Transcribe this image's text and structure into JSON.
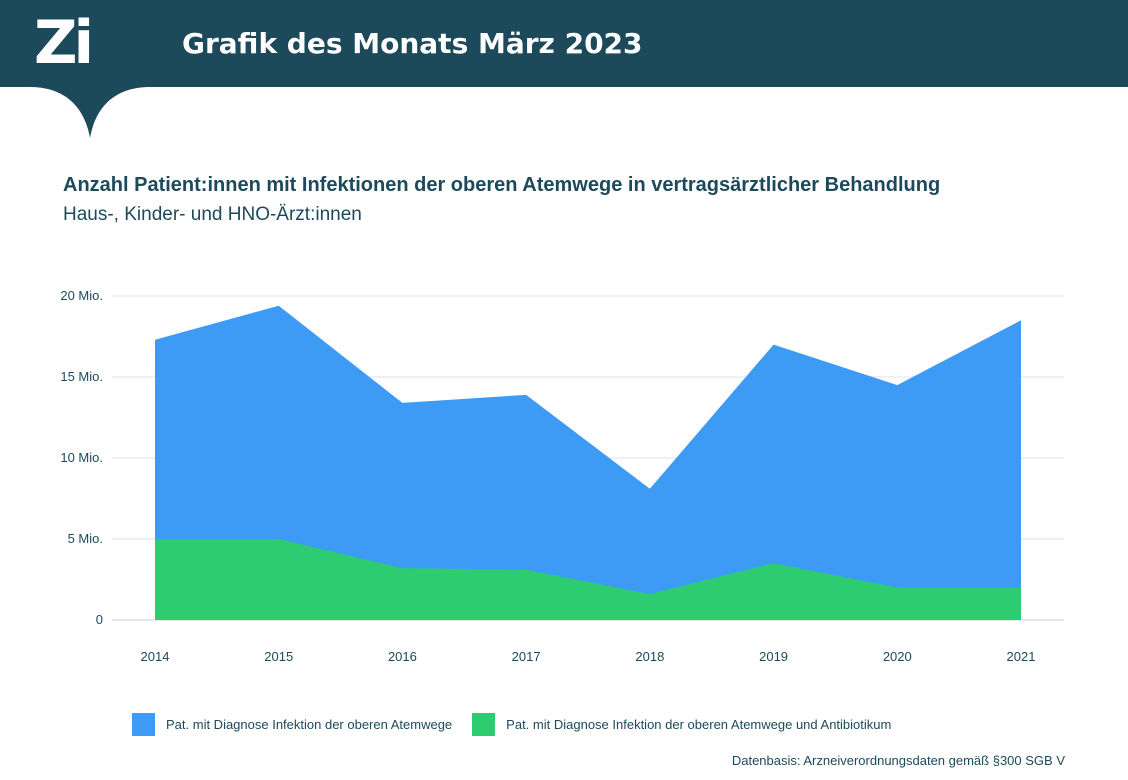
{
  "header": {
    "logo_text": "Zi",
    "title": "Grafik des Monats März 2023"
  },
  "colors": {
    "header_bg": "#1d4a5a",
    "series_all": "#3d9bf5",
    "series_antibiotic": "#2ecc71",
    "grid": "#e6eef0",
    "text": "#1d4a5a"
  },
  "chart_data": {
    "type": "area",
    "title": "Anzahl Patient:innen mit Infektionen der oberen Atemwege in vertragsärztlicher Behandlung",
    "subtitle": "Haus-, Kinder- und HNO-Ärzt:innen",
    "x": [
      "2014",
      "2015",
      "2016",
      "2017",
      "2018",
      "2019",
      "2020",
      "2021"
    ],
    "ylim": [
      0,
      20
    ],
    "yticks": [
      0,
      5,
      10,
      15,
      20
    ],
    "ytick_labels": [
      "0",
      "5 Mio.",
      "10 Mio.",
      "15 Mio.",
      "20 Mio."
    ],
    "xlabel": "",
    "ylabel": "",
    "grid": true,
    "legend_position": "bottom",
    "series": [
      {
        "name": "Pat. mit Diagnose Infektion der oberen Atemwege",
        "values": [
          17.3,
          19.4,
          13.4,
          13.9,
          8.1,
          17.0,
          14.5,
          18.5
        ]
      },
      {
        "name": "Pat. mit Diagnose Infektion der oberen Atemwege und Antibiotikum",
        "values": [
          5.0,
          5.0,
          3.2,
          3.1,
          1.6,
          3.5,
          2.0,
          2.0
        ]
      }
    ],
    "source": "Datenbasis: Arzneiverordnungsdaten gemäß §300 SGB V"
  }
}
